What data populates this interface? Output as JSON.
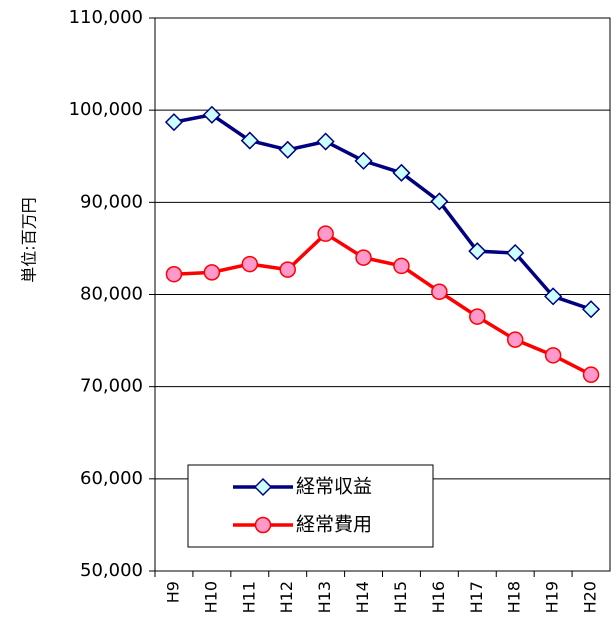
{
  "chart_data": {
    "type": "line",
    "ylabel": "単位:百万円",
    "categories": [
      "H9",
      "H10",
      "H11",
      "H12",
      "H13",
      "H14",
      "H15",
      "H16",
      "H17",
      "H18",
      "H19",
      "H20"
    ],
    "series": [
      {
        "name": "経常収益",
        "color": "#000080",
        "marker": "diamond",
        "marker_color": "#ccffff",
        "values": [
          98700,
          99500,
          96700,
          95700,
          96600,
          94500,
          93200,
          90100,
          84700,
          84500,
          79800,
          78400
        ]
      },
      {
        "name": "経常費用",
        "color": "#ff0000",
        "marker": "circle",
        "marker_color": "#ff99cc",
        "values": [
          82200,
          82400,
          83300,
          82700,
          86600,
          84000,
          83100,
          80300,
          77600,
          75100,
          73400,
          71300
        ]
      }
    ],
    "ylim": [
      50000,
      110000
    ],
    "yticks": [
      {
        "value": 50000,
        "label": "50,000"
      },
      {
        "value": 60000,
        "label": "60,000"
      },
      {
        "value": 70000,
        "label": "70,000"
      },
      {
        "value": 80000,
        "label": "80,000"
      },
      {
        "value": 90000,
        "label": "90,000"
      },
      {
        "value": 100000,
        "label": "100,000"
      },
      {
        "value": 110000,
        "label": "110,000"
      }
    ],
    "grid": true,
    "legend": "lower left"
  }
}
